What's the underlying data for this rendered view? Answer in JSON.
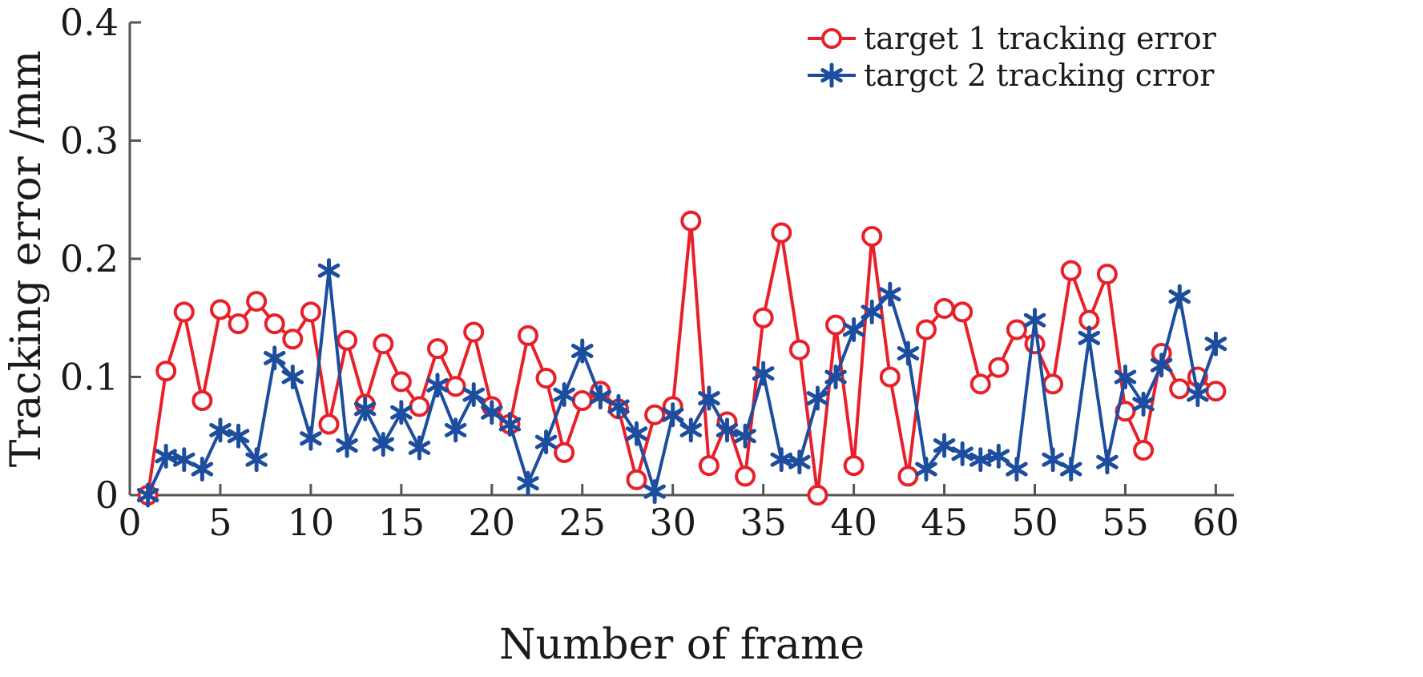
{
  "chart_data": {
    "type": "line",
    "xlabel": "Number of frame",
    "ylabel": "Tracking error /mm",
    "xlim": [
      0,
      61
    ],
    "ylim": [
      0,
      0.4
    ],
    "x_ticks": [
      "0",
      "5",
      "10",
      "15",
      "20",
      "25",
      "30",
      "35",
      "40",
      "45",
      "50",
      "55",
      "60"
    ],
    "x_tick_values": [
      0,
      5,
      10,
      15,
      20,
      25,
      30,
      35,
      40,
      45,
      50,
      55,
      60
    ],
    "y_ticks": [
      "0",
      "0.1",
      "0.2",
      "0.3",
      "0.4"
    ],
    "y_tick_values": [
      0,
      0.1,
      0.2,
      0.3,
      0.4
    ],
    "grid": false,
    "legend_position": "top-right",
    "x": [
      1,
      2,
      3,
      4,
      5,
      6,
      7,
      8,
      9,
      10,
      11,
      12,
      13,
      14,
      15,
      16,
      17,
      18,
      19,
      20,
      21,
      22,
      23,
      24,
      25,
      26,
      27,
      28,
      29,
      30,
      31,
      32,
      33,
      34,
      35,
      36,
      37,
      38,
      39,
      40,
      41,
      42,
      43,
      44,
      45,
      46,
      47,
      48,
      49,
      50,
      51,
      52,
      53,
      54,
      55,
      56,
      57,
      58,
      59,
      60
    ],
    "series": [
      {
        "name": "target 1 tracking error",
        "color": "#e8202a",
        "marker": "circle",
        "values": [
          0.0,
          0.105,
          0.155,
          0.08,
          0.157,
          0.145,
          0.164,
          0.145,
          0.132,
          0.155,
          0.06,
          0.131,
          0.077,
          0.128,
          0.096,
          0.075,
          0.124,
          0.092,
          0.138,
          0.075,
          0.06,
          0.135,
          0.099,
          0.036,
          0.08,
          0.088,
          0.073,
          0.013,
          0.068,
          0.075,
          0.232,
          0.025,
          0.062,
          0.016,
          0.15,
          0.222,
          0.123,
          0.0,
          0.144,
          0.025,
          0.219,
          0.1,
          0.016,
          0.14,
          0.158,
          0.155,
          0.094,
          0.108,
          0.14,
          0.128,
          0.094,
          0.19,
          0.148,
          0.187,
          0.071,
          0.038,
          0.12,
          0.09,
          0.1,
          0.088
        ]
      },
      {
        "name": "targct 2 tracking crror",
        "color": "#1c4d9e",
        "marker": "star",
        "values": [
          0.0,
          0.033,
          0.03,
          0.022,
          0.055,
          0.05,
          0.03,
          0.116,
          0.1,
          0.048,
          0.19,
          0.042,
          0.073,
          0.043,
          0.07,
          0.04,
          0.093,
          0.055,
          0.085,
          0.07,
          0.06,
          0.01,
          0.045,
          0.085,
          0.122,
          0.083,
          0.075,
          0.052,
          0.003,
          0.068,
          0.055,
          0.082,
          0.055,
          0.05,
          0.103,
          0.03,
          0.028,
          0.082,
          0.1,
          0.14,
          0.155,
          0.17,
          0.12,
          0.022,
          0.042,
          0.035,
          0.03,
          0.033,
          0.022,
          0.148,
          0.03,
          0.022,
          0.133,
          0.028,
          0.1,
          0.077,
          0.11,
          0.168,
          0.085,
          0.128
        ]
      }
    ]
  }
}
